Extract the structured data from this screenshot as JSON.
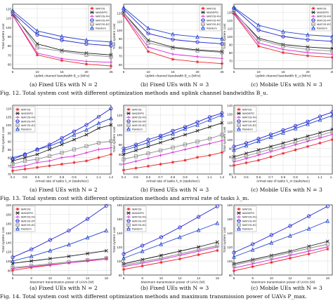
{
  "series_names": [
    "MATOS",
    "MADDPG",
    "MATOS-FH",
    "MATOS-FP",
    "MATOS-EC",
    "Random"
  ],
  "series_colors": [
    "#e8262d",
    "#1a1a1a",
    "#d62ad6",
    "#1f1fd0",
    "#8a8a8a",
    "#2244cc"
  ],
  "series_markers": [
    "star",
    "x",
    "plus",
    "circle",
    "square",
    "triangle"
  ],
  "figure_captions": [
    "Fig. 12.   Total system cost with different optimization methods and uplink channel bandwidths B_u.",
    "Fig. 13.   Total system cost with different optimization methods and arrival rate of tasks λ_m.",
    "Fig. 14.   Total system cost with different optimization methods and maximum transmission power of UAVs P_max."
  ],
  "chart_data": [
    {
      "type": "line",
      "caption": "(a) Fixed UEs with N = 2",
      "xlabel": "Uplink channel bandwidth B_u (MHz)",
      "ylabel": "Total system cost",
      "x": [
        5,
        10,
        15,
        20,
        25
      ],
      "xticks": [
        5,
        10,
        15,
        20,
        25
      ],
      "xlim": [
        5,
        25
      ],
      "ylim": [
        55,
        125
      ],
      "yticks": [
        60,
        70,
        80,
        90,
        100,
        110,
        120
      ],
      "series": [
        {
          "name": "MATOS",
          "values": [
            113,
            70,
            64,
            60,
            58
          ]
        },
        {
          "name": "MADDPG",
          "values": [
            114,
            82,
            75,
            72,
            70
          ]
        },
        {
          "name": "MATOS-FH",
          "values": [
            113,
            72,
            66,
            63,
            62
          ]
        },
        {
          "name": "MATOS-FP",
          "values": [
            116,
            92,
            86,
            82,
            80
          ]
        },
        {
          "name": "MATOS-EC",
          "values": [
            116,
            78,
            74,
            70,
            68
          ]
        },
        {
          "name": "Random",
          "values": [
            118,
            96,
            90,
            86,
            84
          ]
        }
      ]
    },
    {
      "type": "line",
      "caption": "(b) Fixed UEs with N = 3",
      "xlabel": "Uplink channel bandwidth B_u (MHz)",
      "ylabel": "Total system cost",
      "x": [
        5,
        10,
        15,
        20,
        25
      ],
      "xticks": [
        5,
        10,
        15,
        20,
        25
      ],
      "xlim": [
        5,
        25
      ],
      "ylim": [
        55,
        130
      ],
      "yticks": [
        60,
        70,
        80,
        90,
        100,
        110,
        120
      ],
      "series": [
        {
          "name": "MATOS",
          "values": [
            117,
            75,
            66,
            63,
            61
          ]
        },
        {
          "name": "MADDPG",
          "values": [
            120,
            88,
            80,
            77,
            75
          ]
        },
        {
          "name": "MATOS-FH",
          "values": [
            118,
            80,
            72,
            69,
            67
          ]
        },
        {
          "name": "MATOS-FP",
          "values": [
            124,
            96,
            89,
            86,
            84
          ]
        },
        {
          "name": "MATOS-EC",
          "values": [
            120,
            85,
            79,
            76,
            74
          ]
        },
        {
          "name": "Random",
          "values": [
            126,
            102,
            95,
            92,
            90
          ]
        }
      ]
    },
    {
      "type": "line",
      "caption": "(c) Mobile UEs with N = 3",
      "xlabel": "Uplink channel bandwidth B_u (MHz)",
      "ylabel": "Total system cost",
      "x": [
        5,
        10,
        15,
        20,
        25
      ],
      "xticks": [
        5,
        10,
        15,
        20,
        25
      ],
      "xlim": [
        5,
        25
      ],
      "ylim": [
        60,
        140
      ],
      "yticks": [
        70,
        80,
        90,
        100,
        110,
        120,
        130
      ],
      "series": [
        {
          "name": "MATOS",
          "values": [
            128,
            88,
            80,
            76,
            74
          ]
        },
        {
          "name": "MADDPG",
          "values": [
            130,
            98,
            90,
            87,
            85
          ]
        },
        {
          "name": "MATOS-FH",
          "values": [
            129,
            92,
            84,
            80,
            78
          ]
        },
        {
          "name": "MATOS-FP",
          "values": [
            135,
            108,
            100,
            96,
            94
          ]
        },
        {
          "name": "MATOS-EC",
          "values": [
            131,
            96,
            88,
            84,
            82
          ]
        },
        {
          "name": "Random",
          "values": [
            136,
            114,
            106,
            102,
            100
          ]
        }
      ]
    },
    {
      "type": "line",
      "caption": "(a) Fixed UEs with N = 2",
      "xlabel": "Arrival rate of tasks λ_m (tasks/sec)",
      "ylabel": "Total system cost",
      "x": [
        0.4,
        0.5,
        0.6,
        0.7,
        0.8,
        0.9,
        1.0,
        1.1,
        1.2
      ],
      "xticks": [
        0.4,
        0.5,
        0.6,
        0.7,
        0.8,
        0.9,
        1.0,
        1.1,
        1.2
      ],
      "xlim": [
        0.4,
        1.2
      ],
      "ylim": [
        70,
        112
      ],
      "yticks": [
        70,
        75,
        80,
        85,
        90,
        95,
        100,
        105,
        110
      ],
      "series": [
        {
          "name": "MATOS",
          "values": [
            72,
            73,
            74,
            75,
            76,
            77,
            78,
            80,
            82
          ]
        },
        {
          "name": "MADDPG",
          "values": [
            78,
            80,
            82,
            85,
            88,
            91,
            94,
            98,
            100
          ]
        },
        {
          "name": "MATOS-FH",
          "values": [
            74,
            75,
            77,
            78,
            80,
            81,
            83,
            85,
            86
          ]
        },
        {
          "name": "MATOS-FP",
          "values": [
            79,
            82,
            85,
            88,
            92,
            96,
            100,
            105,
            110
          ]
        },
        {
          "name": "MATOS-EC",
          "values": [
            76,
            78,
            79,
            81,
            83,
            85,
            87,
            89,
            90
          ]
        },
        {
          "name": "Random",
          "values": [
            80,
            82,
            85,
            87,
            90,
            94,
            97,
            101,
            104
          ]
        }
      ]
    },
    {
      "type": "line",
      "caption": "(b) Fixed UEs with N = 3",
      "xlabel": "Arrival rate of tasks λ_m (tasks/sec)",
      "ylabel": "Total system cost",
      "x": [
        0.4,
        0.5,
        0.6,
        0.7,
        0.8,
        0.9,
        1.0,
        1.1,
        1.2
      ],
      "xticks": [
        0.4,
        0.5,
        0.6,
        0.7,
        0.8,
        0.9,
        1.0,
        1.1,
        1.2
      ],
      "xlim": [
        0.4,
        1.2
      ],
      "ylim": [
        60,
        130
      ],
      "yticks": [
        70,
        80,
        90,
        100,
        110,
        120
      ],
      "series": [
        {
          "name": "MATOS",
          "values": [
            64,
            66,
            68,
            70,
            72,
            74,
            77,
            79,
            82
          ]
        },
        {
          "name": "MADDPG",
          "values": [
            80,
            84,
            88,
            92,
            96,
            100,
            104,
            108,
            112
          ]
        },
        {
          "name": "MATOS-FH",
          "values": [
            70,
            73,
            76,
            79,
            82,
            85,
            88,
            91,
            94
          ]
        },
        {
          "name": "MATOS-FP",
          "values": [
            86,
            90,
            95,
            99,
            104,
            108,
            113,
            118,
            122
          ]
        },
        {
          "name": "MATOS-EC",
          "values": [
            75,
            78,
            81,
            84,
            87,
            90,
            93,
            96,
            100
          ]
        },
        {
          "name": "Random",
          "values": [
            84,
            88,
            92,
            97,
            101,
            106,
            110,
            115,
            120
          ]
        }
      ]
    },
    {
      "type": "line",
      "caption": "(c) Mobile UEs with N = 3",
      "xlabel": "Arrival rate of tasks λ_m (tasks/sec)",
      "ylabel": "Total system cost",
      "x": [
        0.4,
        0.5,
        0.6,
        0.7,
        0.8,
        0.9,
        1.0,
        1.1,
        1.2
      ],
      "xticks": [
        0.4,
        0.5,
        0.6,
        0.7,
        0.8,
        0.9,
        1.0,
        1.1,
        1.2
      ],
      "xlim": [
        0.4,
        1.2
      ],
      "ylim": [
        60,
        140
      ],
      "yticks": [
        60,
        70,
        80,
        90,
        100,
        110,
        120,
        130,
        140
      ],
      "series": [
        {
          "name": "MATOS",
          "values": [
            70,
            73,
            76,
            80,
            84,
            88,
            92,
            96,
            100
          ]
        },
        {
          "name": "MADDPG",
          "values": [
            80,
            84,
            88,
            92,
            96,
            100,
            104,
            108,
            112
          ]
        },
        {
          "name": "MATOS-FH",
          "values": [
            74,
            78,
            82,
            86,
            90,
            94,
            98,
            102,
            106
          ]
        },
        {
          "name": "MATOS-FP",
          "values": [
            92,
            96,
            101,
            106,
            111,
            116,
            121,
            127,
            132
          ]
        },
        {
          "name": "MATOS-EC",
          "values": [
            77,
            81,
            85,
            89,
            93,
            97,
            101,
            105,
            109
          ]
        },
        {
          "name": "Random",
          "values": [
            88,
            93,
            98,
            103,
            108,
            113,
            118,
            123,
            128
          ]
        }
      ]
    },
    {
      "type": "line",
      "caption": "(a) Fixed UEs with N = 2",
      "xlabel": "Maximum transmission power of UAVs (W)",
      "ylabel": "Total system cost",
      "x": [
        6,
        8,
        10,
        12,
        14,
        16
      ],
      "xticks": [
        6,
        8,
        10,
        12,
        14,
        16
      ],
      "xlim": [
        6,
        16.5
      ],
      "ylim": [
        70,
        220
      ],
      "yticks": [
        80,
        100,
        120,
        140,
        160,
        180,
        200,
        220
      ],
      "series": [
        {
          "name": "MATOS",
          "values": [
            80,
            86,
            91,
            96,
            101,
            106
          ]
        },
        {
          "name": "MADDPG",
          "values": [
            95,
            100,
            105,
            110,
            116,
            122
          ]
        },
        {
          "name": "MATOS-FH",
          "values": [
            84,
            88,
            92,
            96,
            100,
            104
          ]
        },
        {
          "name": "MATOS-FP",
          "values": [
            108,
            125,
            145,
            165,
            190,
            218
          ]
        },
        {
          "name": "MATOS-EC",
          "values": [
            86,
            90,
            94,
            98,
            102,
            106
          ]
        },
        {
          "name": "Random",
          "values": [
            100,
            110,
            122,
            135,
            150,
            165
          ]
        }
      ]
    },
    {
      "type": "line",
      "caption": "(b) Fixed UEs with N = 3",
      "xlabel": "Maximum transmission power of UAVs (W)",
      "ylabel": "Total system cost",
      "x": [
        6,
        8,
        10,
        12,
        14,
        16
      ],
      "xticks": [
        6,
        8,
        10,
        12,
        14,
        16
      ],
      "xlim": [
        6,
        16.5
      ],
      "ylim": [
        80,
        180
      ],
      "yticks": [
        80,
        100,
        120,
        140,
        160,
        180
      ],
      "series": [
        {
          "name": "MATOS",
          "values": [
            88,
            93,
            98,
            103,
            109,
            115
          ]
        },
        {
          "name": "MADDPG",
          "values": [
            96,
            102,
            108,
            114,
            120,
            127
          ]
        },
        {
          "name": "MATOS-FH",
          "values": [
            92,
            97,
            102,
            108,
            114,
            120
          ]
        },
        {
          "name": "MATOS-FP",
          "values": [
            110,
            122,
            134,
            148,
            163,
            178
          ]
        },
        {
          "name": "MATOS-EC",
          "values": [
            94,
            99,
            104,
            110,
            116,
            122
          ]
        },
        {
          "name": "Random",
          "values": [
            104,
            114,
            124,
            134,
            144,
            154
          ]
        }
      ]
    },
    {
      "type": "line",
      "caption": "(c) Mobile UEs with N = 3",
      "xlabel": "Maximum transmission power of UAVs (W)",
      "ylabel": "Total system cost",
      "x": [
        6,
        8,
        10,
        12,
        14,
        16
      ],
      "xticks": [
        6,
        8,
        10,
        12,
        14,
        16
      ],
      "xlim": [
        6,
        16.5
      ],
      "ylim": [
        80,
        180
      ],
      "yticks": [
        80,
        100,
        120,
        140,
        160,
        180
      ],
      "series": [
        {
          "name": "MATOS",
          "values": [
            86,
            92,
            98,
            104,
            110,
            117
          ]
        },
        {
          "name": "MADDPG",
          "values": [
            96,
            102,
            108,
            114,
            121,
            128
          ]
        },
        {
          "name": "MATOS-FH",
          "values": [
            90,
            96,
            102,
            108,
            114,
            120
          ]
        },
        {
          "name": "MATOS-FP",
          "values": [
            112,
            124,
            137,
            150,
            164,
            178
          ]
        },
        {
          "name": "MATOS-EC",
          "values": [
            94,
            100,
            106,
            112,
            118,
            124
          ]
        },
        {
          "name": "Random",
          "values": [
            106,
            116,
            126,
            136,
            146,
            157
          ]
        }
      ]
    }
  ]
}
